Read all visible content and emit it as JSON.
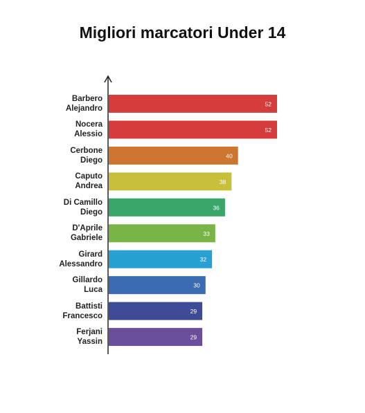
{
  "chart_data": {
    "type": "bar",
    "orientation": "horizontal",
    "title": "Migliori marcatori Under 14",
    "categories": [
      "Barbero\nAlejandro",
      "Nocera\nAlessio",
      "Cerbone\nDiego",
      "Caputo\nAndrea",
      "Di Camillo\nDiego",
      "D'Aprile\nGabriele",
      "Girard\nAlessandro",
      "Gillardo\nLuca",
      "Battisti\nFrancesco",
      "Ferjani\nYassin"
    ],
    "values": [
      52,
      52,
      40,
      38,
      36,
      33,
      32,
      30,
      29,
      29
    ],
    "colors": [
      "#d63c3c",
      "#d63c3c",
      "#cc7630",
      "#c8bf3a",
      "#3aa669",
      "#79b447",
      "#29a0d4",
      "#3a6bb3",
      "#3e4c98",
      "#6a4f9d"
    ]
  }
}
